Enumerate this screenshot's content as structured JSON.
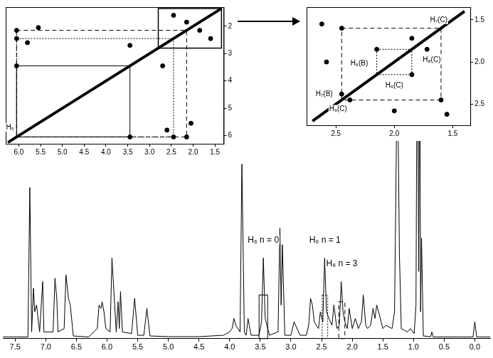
{
  "chart_data": [
    {
      "type": "line",
      "x": [
        -0.25,
        -0.03,
        0,
        0.03,
        0.68,
        0.7,
        0.72,
        0.84,
        0.87,
        0.885,
        0.9,
        0.915,
        0.94,
        0.96,
        0.99,
        1.05,
        1.1,
        1.2,
        1.23,
        1.25,
        1.27,
        1.29,
        1.31,
        1.35,
        1.45,
        1.5,
        1.57,
        1.6,
        1.63,
        1.66,
        1.7,
        1.75,
        1.78,
        1.82,
        1.85,
        1.9,
        1.95,
        2.0,
        2.05,
        2.08,
        2.12,
        2.15,
        2.18,
        2.21,
        2.25,
        2.3,
        2.33,
        2.38,
        2.42,
        2.45,
        2.48,
        2.52,
        2.55,
        2.62,
        2.65,
        2.68,
        2.71,
        2.75,
        2.85,
        2.95,
        3.0,
        3.1,
        3.14,
        3.16,
        3.18,
        3.21,
        3.35,
        3.42,
        3.45,
        3.48,
        3.52,
        3.65,
        3.7,
        3.73,
        3.76,
        3.8,
        3.83,
        3.9,
        3.93,
        3.96,
        4.0,
        4.1,
        4.5,
        5.0,
        5.3,
        5.35,
        5.4,
        5.5,
        5.55,
        5.6,
        5.75,
        5.78,
        5.8,
        5.82,
        5.85,
        5.92,
        5.95,
        6.02,
        6.05,
        6.08,
        6.1,
        6.13,
        6.16,
        6.3,
        6.55,
        6.6,
        6.63,
        6.67,
        6.7,
        6.8,
        6.82,
        6.85,
        6.88,
        7.03,
        7.05,
        7.08,
        7.1,
        7.15,
        7.18,
        7.2,
        7.23,
        7.26,
        7.29,
        7.7
      ],
      "values": [
        0.5,
        0.5,
        5,
        0.5,
        0.5,
        2,
        0.6,
        0.8,
        30,
        8,
        95,
        20,
        100,
        10,
        1.5,
        3,
        2,
        3,
        25,
        60,
        77,
        40,
        8,
        3,
        4,
        3,
        8,
        10,
        6,
        9,
        4,
        3,
        4,
        13,
        5,
        3,
        6,
        3,
        9,
        3,
        5,
        8,
        17,
        4,
        3,
        10,
        4,
        6,
        8,
        24,
        5,
        8,
        3,
        5,
        10,
        12,
        4,
        1,
        1,
        5,
        1,
        1,
        28,
        10,
        33,
        2,
        1,
        6,
        24,
        5,
        1,
        1,
        6,
        1,
        2,
        52,
        2,
        4,
        6,
        3,
        2,
        1,
        0.6,
        0.6,
        0.8,
        9,
        1,
        1,
        12,
        1.5,
        2,
        14,
        3,
        11,
        2,
        24,
        2,
        3,
        8,
        11,
        9,
        10,
        3,
        0.5,
        0.8,
        10,
        12,
        19,
        3,
        2,
        12,
        18,
        2,
        2,
        17,
        8,
        2,
        10,
        8,
        15,
        2,
        45,
        0.5,
        0.5
      ],
      "xlim": [
        7.7,
        -0.25
      ],
      "xticks": [
        7.5,
        {
          "value": 7,
          "label": "7.0"
        },
        6.5,
        {
          "value": 6,
          "label": "6.0"
        },
        5.5,
        {
          "value": 5,
          "label": "5.0"
        },
        4.5,
        {
          "value": 4,
          "label": "4.0"
        },
        3.5,
        {
          "value": 3,
          "label": "3.0"
        },
        2.5,
        {
          "value": 2,
          "label": "2.0"
        },
        1.5,
        {
          "value": 1,
          "label": "1.0"
        },
        0.5,
        {
          "value": 0,
          "label": "0.0"
        }
      ],
      "ylim": [
        0,
        100
      ],
      "tick_labels": "x",
      "grid": false,
      "color": "#000000",
      "annotations": [
        {
          "text": "H₆ n = 0",
          "x_range": [
            3.38,
            3.52
          ],
          "y_range": [
            0,
            13
          ],
          "label_y": 28,
          "line_style": "solid"
        },
        {
          "text": "H₆ n = 1",
          "x_range": [
            2.4,
            2.49
          ],
          "y_range": [
            0,
            13
          ],
          "label_y": 28,
          "line_style": "dotted"
        },
        {
          "text": "H₆ n = 3",
          "x_range": [
            2.12,
            2.22
          ],
          "y_range": [
            0,
            11
          ],
          "label_y": 21,
          "line_style": "dashed"
        }
      ]
    },
    {
      "type": "scatter",
      "x": [
        6.05,
        3.45,
        6.05,
        2.45,
        6.05,
        2.15,
        5.8,
        2.6,
        3.45,
        2.7,
        5.55,
        2.05,
        1.6,
        2.45,
        1.85,
        2.15
      ],
      "values": [
        3.45,
        6.05,
        2.45,
        6.05,
        2.15,
        6.05,
        2.6,
        5.8,
        2.7,
        3.45,
        2.05,
        5.55,
        2.45,
        1.6,
        2.15,
        1.85
      ],
      "diagonal": [
        6.25,
        1.35
      ],
      "xlim": [
        6.3,
        1.3
      ],
      "xticks": [
        {
          "value": 6,
          "label": "6.0"
        },
        5.5,
        {
          "value": 5,
          "label": "5.0"
        },
        4.5,
        {
          "value": 4,
          "label": "4.0"
        },
        3.5,
        {
          "value": 3,
          "label": "3.0"
        },
        2.5,
        {
          "value": 2,
          "label": "2.0"
        },
        1.5
      ],
      "ylim": [
        6.3,
        1.3
      ],
      "yticks": [
        2,
        3,
        4,
        5,
        6
      ],
      "grid": false,
      "color": "#000000",
      "connections": [
        {
          "from": 6.05,
          "to": 3.45,
          "line_style": "solid"
        },
        {
          "from": 6.05,
          "to": 2.45,
          "line_style": "dotted"
        },
        {
          "from": 6.05,
          "to": 2.15,
          "line_style": "dashed"
        }
      ],
      "zoom_box": {
        "x": [
          2.8,
          1.35
        ],
        "y": [
          2.8,
          1.35
        ]
      },
      "annotations": [
        {
          "text": "H₅",
          "x": 6.2,
          "y": 5.7
        }
      ]
    },
    {
      "type": "scatter",
      "x": [
        2.62,
        1.55,
        2.45,
        1.6,
        2.15,
        1.85,
        1.72,
        1.85,
        2.0,
        2.58,
        2.45,
        2.38
      ],
      "values": [
        1.55,
        2.62,
        1.6,
        2.45,
        1.85,
        2.15,
        1.85,
        1.72,
        2.58,
        2.0,
        2.38,
        2.45
      ],
      "diagonal": [
        2.7,
        1.4
      ],
      "xlim": [
        2.75,
        1.35
      ],
      "xticks": [
        2.5,
        {
          "value": 2,
          "label": "2.0"
        },
        1.5
      ],
      "ylim": [
        2.75,
        1.35
      ],
      "yticks": [
        1.5,
        {
          "value": 2,
          "label": "2.0"
        },
        2.5
      ],
      "grid": false,
      "color": "#000000",
      "connections": [
        {
          "from": 2.45,
          "to": 1.6,
          "line_style": "dashed"
        },
        {
          "from": 2.15,
          "to": 1.85,
          "line_style": "dotted"
        }
      ],
      "annotations": [
        {
          "text": "H₇(C)",
          "x": 1.62,
          "y": 1.5
        },
        {
          "text": "H₈(C)",
          "x": 1.68,
          "y": 1.98
        },
        {
          "text": "H₆(B)",
          "x": 2.3,
          "y": 2.02
        },
        {
          "text": "H₆(C)",
          "x": 2.0,
          "y": 2.28
        },
        {
          "text": "H₇(B)",
          "x": 2.6,
          "y": 2.38
        },
        {
          "text": "H₉(C)",
          "x": 2.48,
          "y": 2.56
        }
      ]
    }
  ]
}
